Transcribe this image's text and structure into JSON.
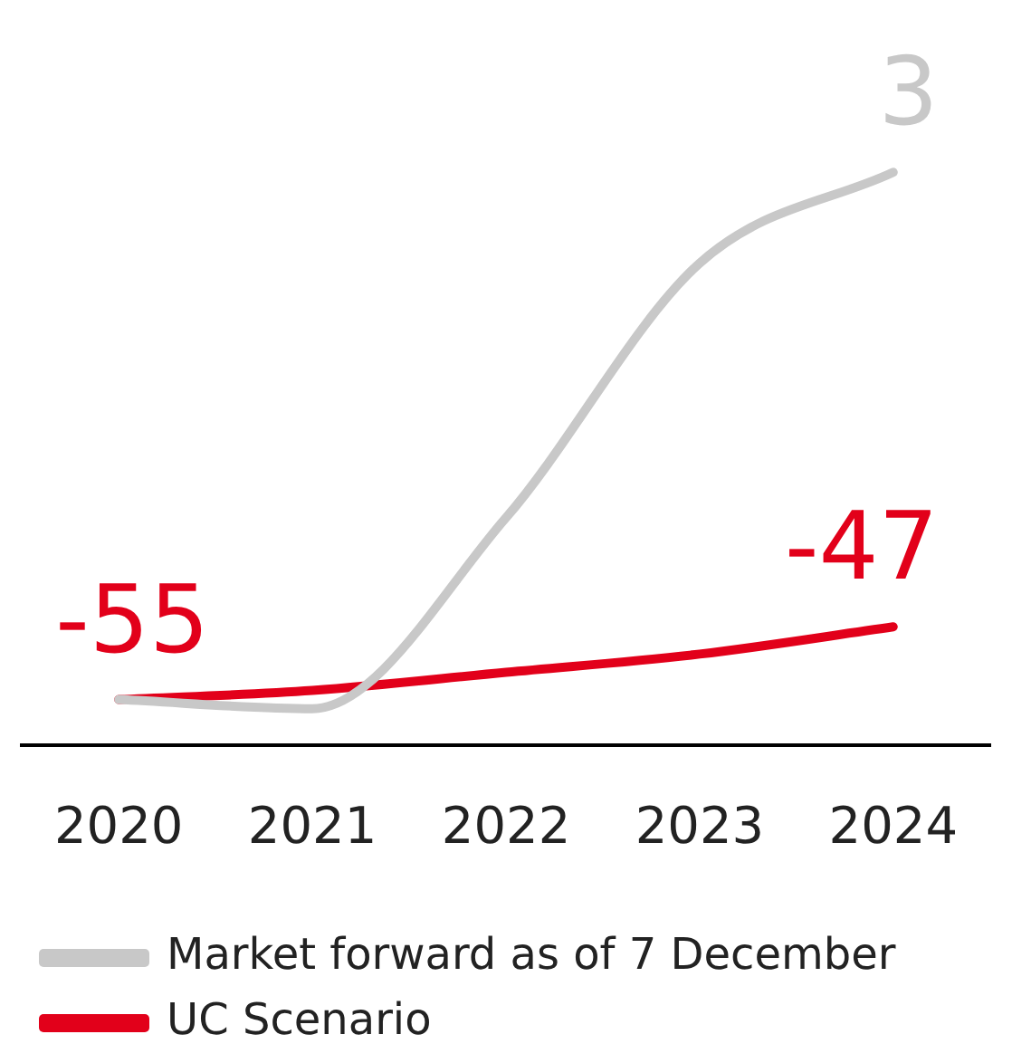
{
  "chart_data": {
    "type": "line",
    "categories": [
      "2020",
      "2021",
      "2022",
      "2023",
      "2024"
    ],
    "series": [
      {
        "name": "Market forward as of 7 December",
        "color": "#c8c8c8",
        "values": [
          -55,
          -56,
          -35,
          -7,
          3
        ],
        "value_labels": [
          null,
          null,
          null,
          null,
          "3"
        ]
      },
      {
        "name": "UC Scenario",
        "color": "#e2001a",
        "values": [
          -55,
          -54,
          -52,
          -50,
          -47
        ],
        "value_labels": [
          "-55",
          null,
          null,
          null,
          "-47"
        ]
      }
    ],
    "tick_labels": "x",
    "grid": false,
    "legend": "bottom",
    "marker": "none",
    "line_style": "solid"
  }
}
